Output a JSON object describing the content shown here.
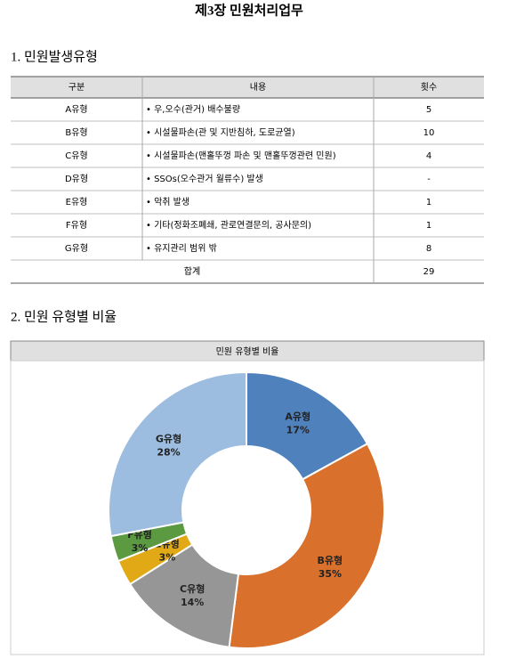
{
  "header": {
    "title": "제3장 민원처리업무"
  },
  "section1": {
    "heading": "1. 민원발생유형"
  },
  "table": {
    "columns": [
      "구분",
      "내용",
      "횟수"
    ],
    "rows": [
      [
        "A유형",
        "• 우,오수(관거) 배수불량",
        "5"
      ],
      [
        "B유형",
        "• 시설물파손(관 및 지반침하, 도로균열)",
        "10"
      ],
      [
        "C유형",
        "• 시설물파손(맨홀뚜껑 파손 및 맨홀뚜껑관련 민원)",
        "4"
      ],
      [
        "D유형",
        "• SSOs(오수관거 월류수) 발생",
        "-"
      ],
      [
        "E유형",
        "• 악취 발생",
        "1"
      ],
      [
        "F유형",
        "• 기타(정화조폐쇄, 관로연결문의, 공사문의)",
        "1"
      ],
      [
        "G유형",
        "• 유지관리 범위 밖",
        "8"
      ]
    ],
    "total": {
      "label": "합계",
      "value": "29"
    }
  },
  "section2": {
    "heading": "2. 민원 유형별 비율"
  },
  "chart_data": {
    "type": "donut",
    "title": "민원 유형별 비율",
    "categories": [
      "A유형",
      "B유형",
      "C유형",
      "E유형",
      "F유형",
      "G유형"
    ],
    "values": [
      17,
      35,
      14,
      3,
      3,
      28
    ],
    "value_labels": [
      "17%",
      "35%",
      "14%",
      "3%",
      "3%",
      "28%"
    ],
    "colors": [
      "#4f81bd",
      "#d9702b",
      "#969696",
      "#e2a917",
      "#5b9a40",
      "#9dbde0"
    ]
  }
}
